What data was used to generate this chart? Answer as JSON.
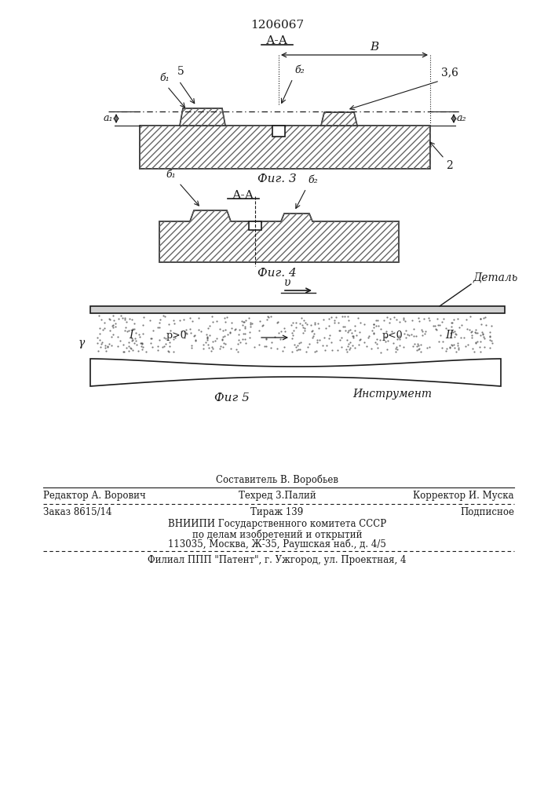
{
  "title": "1206067",
  "fig3_label": "Фиг. 3",
  "fig4_label": "Фиг. 4",
  "fig5_label": "Фиг 5",
  "section_label": "А-А",
  "bg_color": "#ffffff",
  "line_color": "#1a1a1a",
  "footer_sestavitel": "Составитель В. Воробьев",
  "footer_redaktor": "Редактор А. Ворович",
  "footer_tehred": "Техред 3.Палий",
  "footer_korrektor": "Корректор И. Муска",
  "footer_zakaz": "Заказ 8615/14",
  "footer_tirazh": "Тираж 139",
  "footer_podpisnoe": "Подписное",
  "footer_vniipи": "ВНИИПИ Государственного комитета СССР",
  "footer_po_delam": "по делам изобретений и открытий",
  "footer_address": "113035, Москва, Ж-35, Раушская наб., д. 4/5",
  "footer_filial": "Филиал ППП \"Патент\", г. Ужгород, ул. Проектная, 4",
  "label_detal": "Деталь",
  "label_instrument": "Инструмент"
}
